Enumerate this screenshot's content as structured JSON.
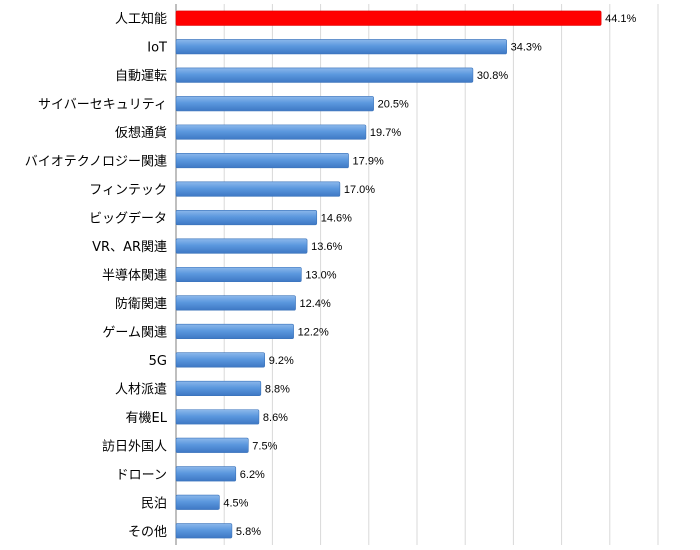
{
  "chart_data": {
    "type": "bar",
    "orientation": "horizontal",
    "title": "",
    "xlabel": "",
    "ylabel": "",
    "xlim": [
      0,
      50
    ],
    "grid": true,
    "categories": [
      "人工知能",
      "IoT",
      "自動運転",
      "サイバーセキュリティ",
      "仮想通貨",
      "バイオテクノロジー関連",
      "フィンテック",
      "ビッグデータ",
      "VR、AR関連",
      "半導体関連",
      "防衛関連",
      "ゲーム関連",
      "5G",
      "人材派遣",
      "有機EL",
      "訪日外国人",
      "ドローン",
      "民泊",
      "その他"
    ],
    "values": [
      44.1,
      34.3,
      30.8,
      20.5,
      19.7,
      17.9,
      17.0,
      14.6,
      13.6,
      13.0,
      12.4,
      12.2,
      9.2,
      8.8,
      8.6,
      7.5,
      6.2,
      4.5,
      5.8
    ],
    "value_labels": [
      "44.1%",
      "34.3%",
      "30.8%",
      "20.5%",
      "19.7%",
      "17.9%",
      "17.0%",
      "14.6%",
      "13.6%",
      "13.0%",
      "12.4%",
      "12.2%",
      "9.2%",
      "8.8%",
      "8.6%",
      "7.5%",
      "6.2%",
      "4.5%",
      "5.8%"
    ],
    "colors": {
      "highlight": "#ff0000",
      "bar": "#4f8fd8",
      "bar_light": "#8cb8eb",
      "grid": "#d9d9d9",
      "axis": "#7f7f7f"
    },
    "highlight_index": 0
  }
}
